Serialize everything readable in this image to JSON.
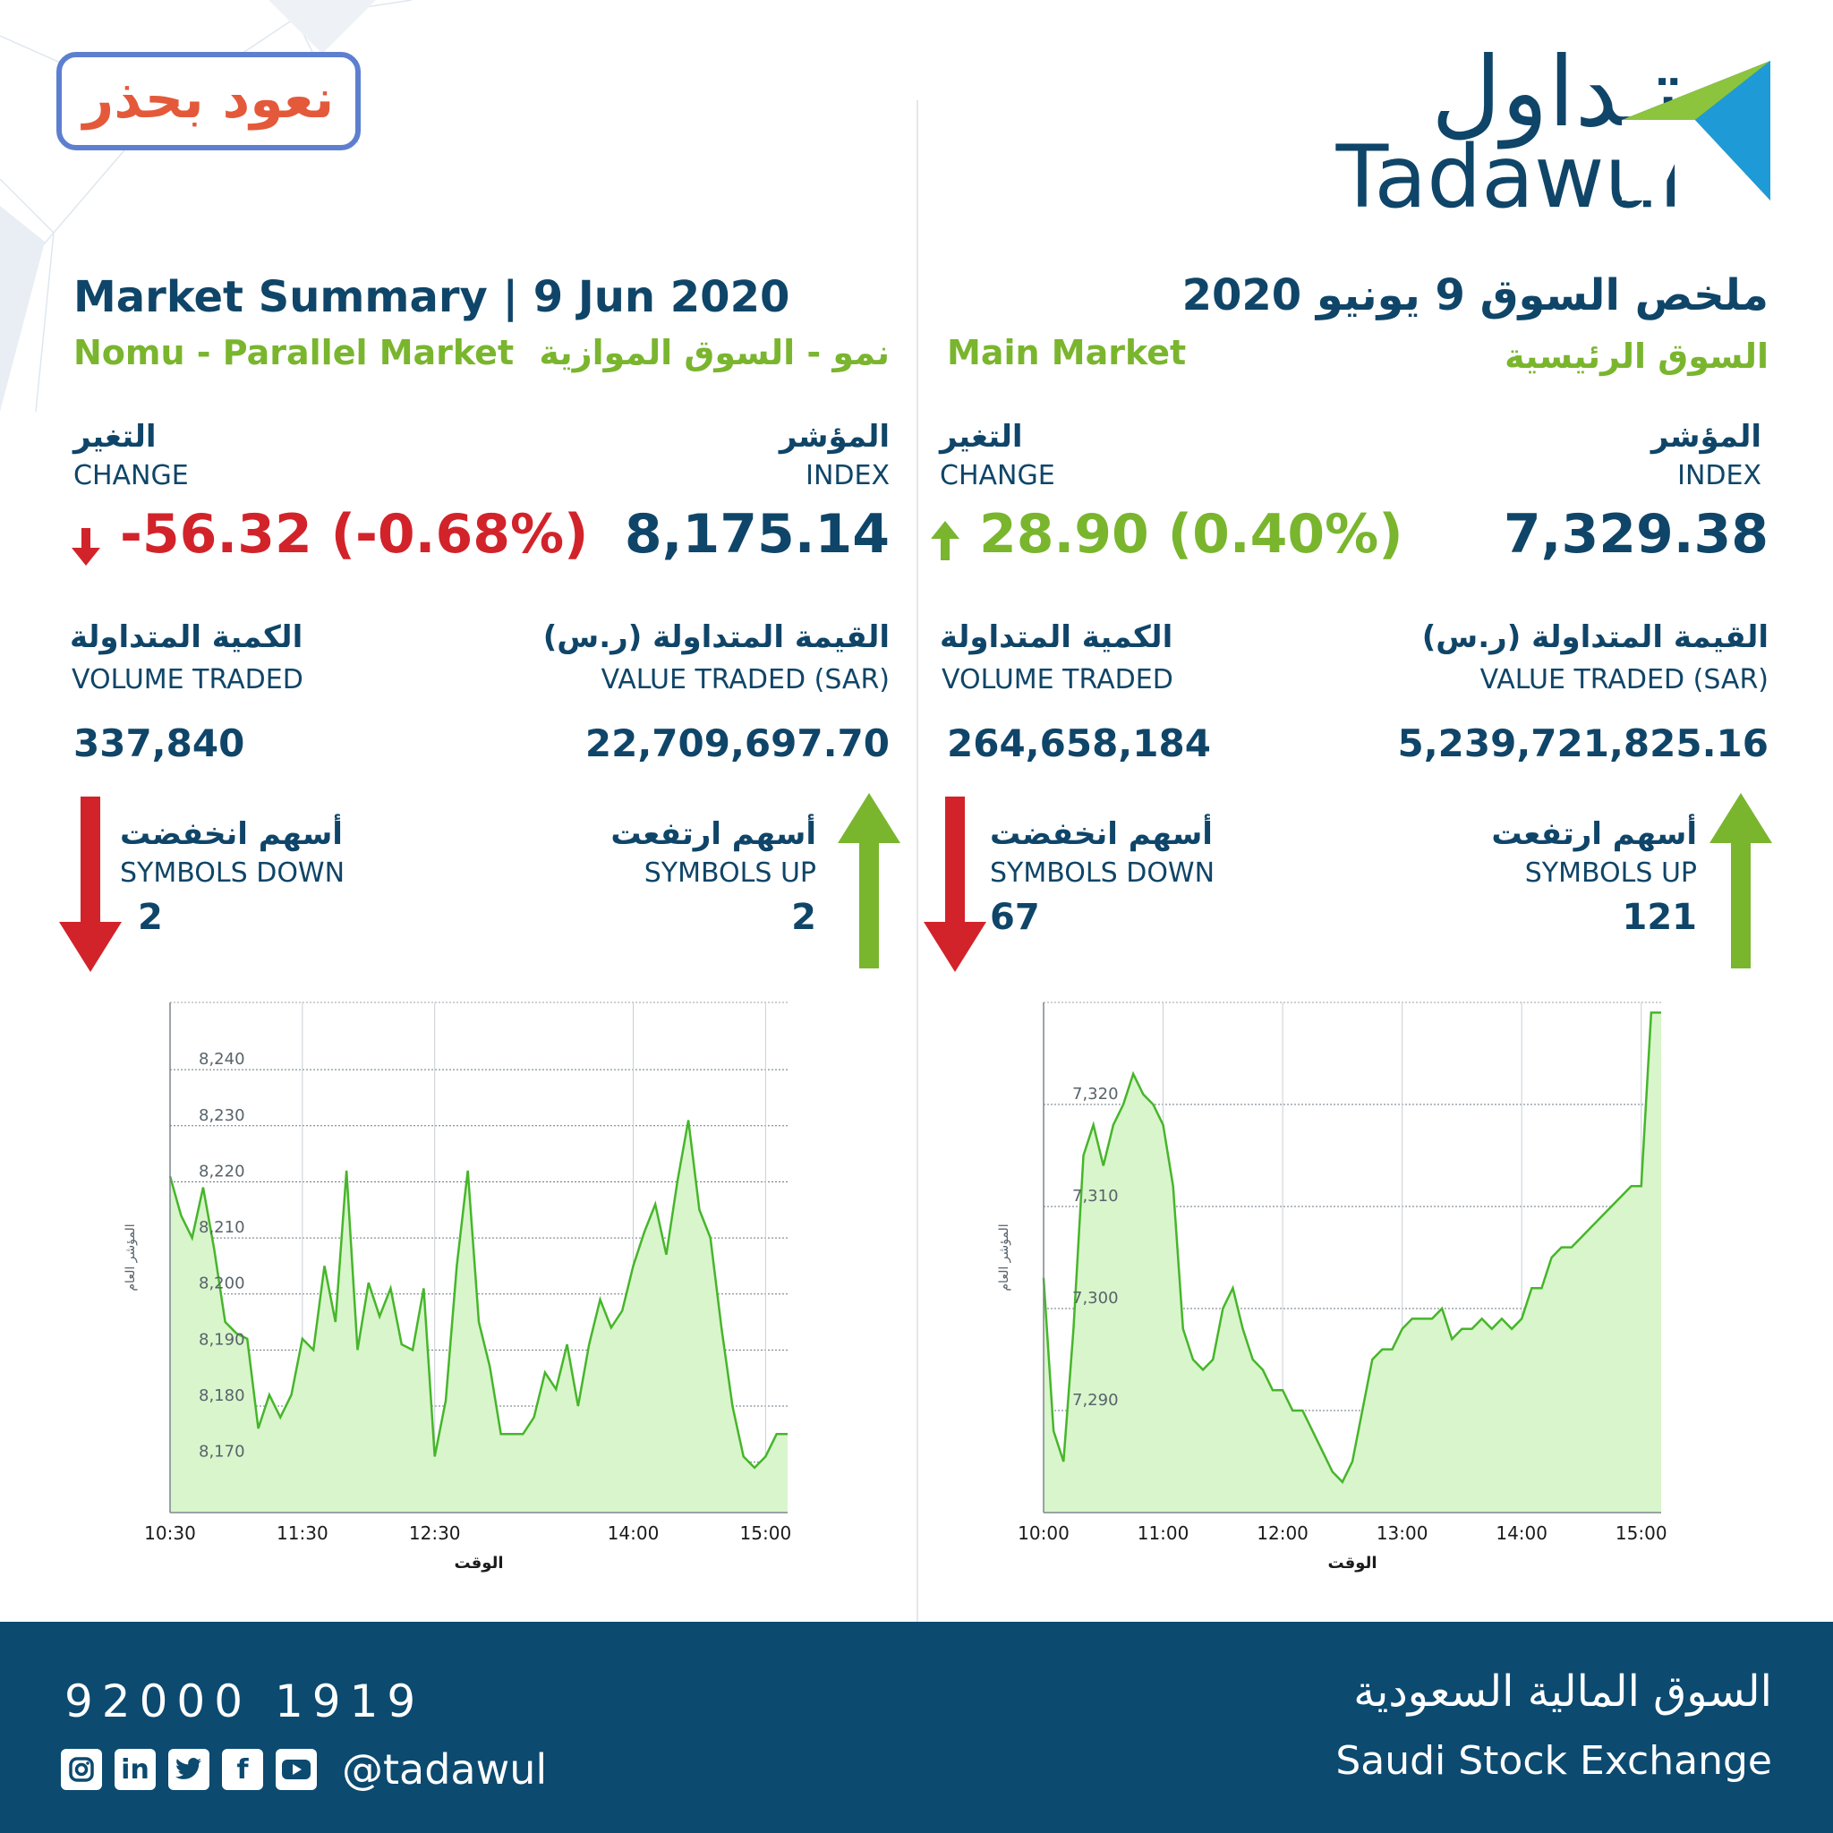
{
  "slogan": "نعود بحذر",
  "logo": {
    "ar": "تـداول",
    "en": "Tadawul"
  },
  "title": {
    "en": "Market Summary | 9 Jun 2020",
    "ar": "ملخص السوق 9 يونيو 2020"
  },
  "colors": {
    "navy": "#0f4568",
    "green": "#7ab52e",
    "red": "#d2232a",
    "footer": "#0c4a70",
    "chart_fill": "#d9f5cc",
    "chart_line": "#46b62a"
  },
  "nomu": {
    "subtitle_en": "Nomu - Parallel Market",
    "subtitle_ar": "نمو - السوق الموازية",
    "index_label_ar": "المؤشر",
    "index_label_en": "INDEX",
    "index": "8,175.14",
    "change_label_ar": "التغير",
    "change_label_en": "CHANGE",
    "change": "-56.32 (-0.68%)",
    "change_icon": "arrow-down-icon",
    "value_label_ar": "القيمة المتداولة (ر.س)",
    "value_label_en": "VALUE TRADED (SAR)",
    "value": "22,709,697.70",
    "volume_label_ar": "الكمية المتداولة",
    "volume_label_en": "VOLUME TRADED",
    "volume": "337,840",
    "up_label_ar": "أسهم ارتفعت",
    "up_label_en": "SYMBOLS UP",
    "up": "2",
    "down_label_ar": "أسهم انخفضت",
    "down_label_en": "SYMBOLS DOWN",
    "down": "2"
  },
  "main": {
    "subtitle_en": "Main Market",
    "subtitle_ar": "السوق الرئيسية",
    "index_label_ar": "المؤشر",
    "index_label_en": "INDEX",
    "index": "7,329.38",
    "change_label_ar": "التغير",
    "change_label_en": "CHANGE",
    "change": "28.90 (0.40%)",
    "change_icon": "arrow-up-icon",
    "value_label_ar": "القيمة المتداولة (ر.س)",
    "value_label_en": "VALUE TRADED (SAR)",
    "value": "5,239,721,825.16",
    "volume_label_ar": "الكمية المتداولة",
    "volume_label_en": "VOLUME TRADED",
    "volume": "264,658,184",
    "up_label_ar": "أسهم ارتفعت",
    "up_label_en": "SYMBOLS UP",
    "up": "121",
    "down_label_ar": "أسهم انخفضت",
    "down_label_en": "SYMBOLS DOWN",
    "down": "67"
  },
  "chart_data": [
    {
      "type": "area",
      "xlabel": "الوقت",
      "ylabel": "المؤشر العام",
      "x_ticks": [
        "10:30",
        "11:30",
        "12:30",
        "14:00",
        "15:00"
      ],
      "y_ticks": [
        "8,170",
        "8,180",
        "8,190",
        "8,200",
        "8,210",
        "8,220",
        "8,230",
        "8,240"
      ],
      "ylim": [
        8161,
        8252
      ],
      "grid": true,
      "x": [
        "10:30",
        "10:35",
        "10:40",
        "10:45",
        "10:50",
        "10:55",
        "11:00",
        "11:05",
        "11:10",
        "11:15",
        "11:20",
        "11:25",
        "11:30",
        "11:35",
        "11:40",
        "11:45",
        "11:50",
        "11:55",
        "12:00",
        "12:05",
        "12:10",
        "12:15",
        "12:20",
        "12:25",
        "12:30",
        "12:35",
        "12:40",
        "12:45",
        "12:50",
        "12:55",
        "13:00",
        "13:05",
        "13:10",
        "13:15",
        "13:20",
        "13:25",
        "13:30",
        "13:35",
        "13:40",
        "13:45",
        "13:50",
        "13:55",
        "14:00",
        "14:05",
        "14:10",
        "14:15",
        "14:20",
        "14:25",
        "14:30",
        "14:35",
        "14:40",
        "14:45",
        "14:50",
        "14:55",
        "15:00",
        "15:05",
        "15:10"
      ],
      "y": [
        8221,
        8214,
        8210,
        8219,
        8208,
        8195,
        8193,
        8192,
        8176,
        8182,
        8178,
        8182,
        8192,
        8190,
        8205,
        8195,
        8222,
        8190,
        8202,
        8196,
        8201,
        8191,
        8190,
        8201,
        8171,
        8181,
        8205,
        8222,
        8195,
        8187,
        8175,
        8175,
        8175,
        8178,
        8186,
        8183,
        8191,
        8180,
        8191,
        8199,
        8194,
        8197,
        8205,
        8211,
        8216,
        8207,
        8220,
        8231,
        8215,
        8210,
        8194,
        8180,
        8171,
        8169,
        8171,
        8175,
        8175
      ]
    },
    {
      "type": "area",
      "xlabel": "الوقت",
      "ylabel": "المؤشر العام",
      "x_ticks": [
        "10:00",
        "11:00",
        "12:00",
        "13:00",
        "14:00",
        "15:00"
      ],
      "y_ticks": [
        "7,290",
        "7,300",
        "7,310",
        "7,320"
      ],
      "ylim": [
        7280,
        7330
      ],
      "grid": true,
      "x": [
        "10:00",
        "10:05",
        "10:10",
        "10:15",
        "10:20",
        "10:25",
        "10:30",
        "10:35",
        "10:40",
        "10:45",
        "10:50",
        "10:55",
        "11:00",
        "11:05",
        "11:10",
        "11:15",
        "11:20",
        "11:25",
        "11:30",
        "11:35",
        "11:40",
        "11:45",
        "11:50",
        "11:55",
        "12:00",
        "12:05",
        "12:10",
        "12:15",
        "12:20",
        "12:25",
        "12:30",
        "12:35",
        "12:40",
        "12:45",
        "12:50",
        "12:55",
        "13:00",
        "13:05",
        "13:10",
        "13:15",
        "13:20",
        "13:25",
        "13:30",
        "13:35",
        "13:40",
        "13:45",
        "13:50",
        "13:55",
        "14:00",
        "14:05",
        "14:10",
        "14:15",
        "14:20",
        "14:25",
        "14:30",
        "14:35",
        "14:40",
        "14:45",
        "14:50",
        "14:55",
        "15:00",
        "15:05",
        "15:10"
      ],
      "y": [
        7303,
        7288,
        7285,
        7298,
        7315,
        7318,
        7314,
        7318,
        7320,
        7323,
        7321,
        7320,
        7318,
        7312,
        7298,
        7295,
        7294,
        7295,
        7300,
        7302,
        7298,
        7295,
        7294,
        7292,
        7292,
        7290,
        7290,
        7288,
        7286,
        7284,
        7283,
        7285,
        7290,
        7295,
        7296,
        7296,
        7298,
        7299,
        7299,
        7299,
        7300,
        7297,
        7298,
        7298,
        7299,
        7298,
        7299,
        7298,
        7299,
        7302,
        7302,
        7305,
        7306,
        7306,
        7307,
        7308,
        7309,
        7310,
        7311,
        7312,
        7312,
        7329,
        7329
      ]
    }
  ],
  "footer": {
    "phone": "92000 1919",
    "handle": "@tadawul",
    "socials": [
      "instagram-icon",
      "linkedin-icon",
      "twitter-icon",
      "facebook-icon",
      "youtube-icon"
    ],
    "name_ar": "السوق المالية السعودية",
    "name_en": "Saudi Stock Exchange"
  }
}
